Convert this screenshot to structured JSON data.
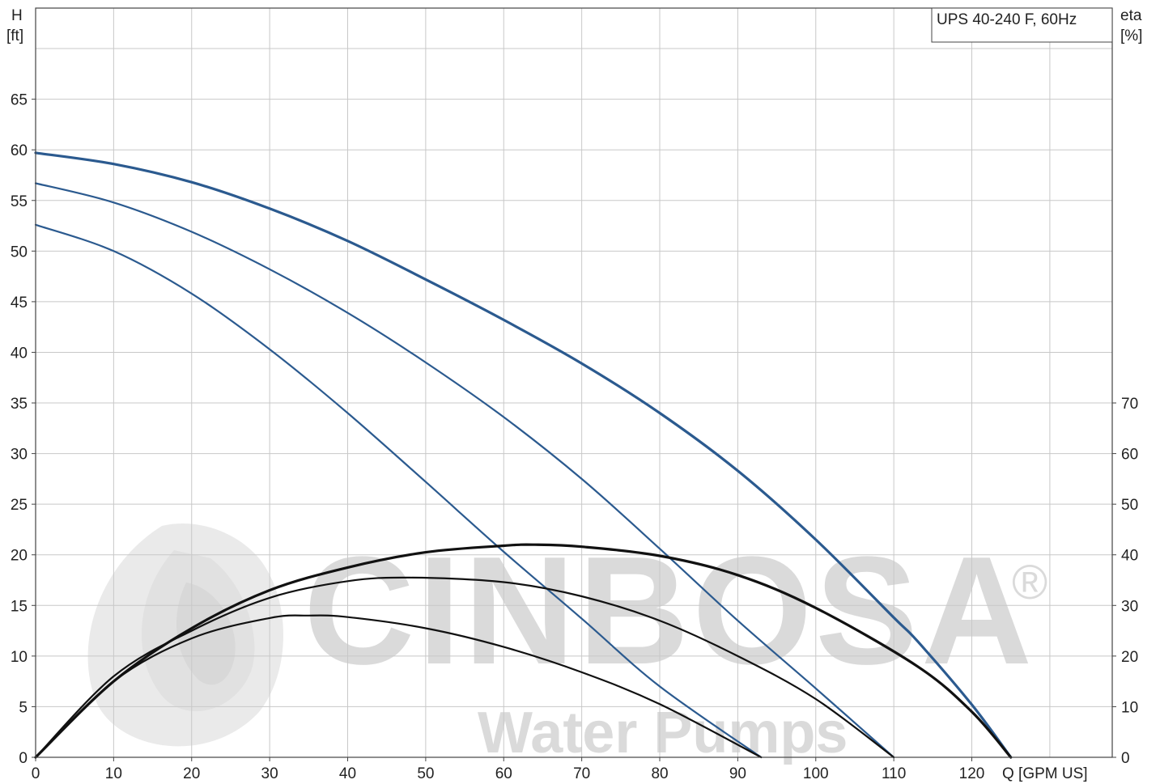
{
  "chart_data": {
    "type": "line",
    "title": "UPS 40-240 F, 60Hz",
    "xlabel": "Q [GPM US]",
    "ylabel_left": [
      "H",
      "[ft]"
    ],
    "ylabel_right": [
      "eta",
      "[%]"
    ],
    "xlim": [
      0,
      138
    ],
    "ylim_left": [
      0,
      74
    ],
    "ylim_right": [
      0,
      148
    ],
    "x_ticks": [
      0,
      10,
      20,
      30,
      40,
      50,
      60,
      70,
      80,
      90,
      100,
      110,
      120
    ],
    "y_left_ticks": [
      0,
      5,
      10,
      15,
      20,
      25,
      30,
      35,
      40,
      45,
      50,
      55,
      60,
      65
    ],
    "y_right_ticks": [
      0,
      10,
      20,
      30,
      40,
      50,
      60,
      70
    ],
    "grid": true,
    "watermark": [
      "CINBOSA",
      "Water Pumps",
      "®"
    ],
    "colors": {
      "head": "#2b5a8f",
      "efficiency": "#111111",
      "grid": "#c8c8c8"
    },
    "series": [
      {
        "kind": "head",
        "axis": "left",
        "x": [
          0,
          10,
          20,
          30,
          40,
          50,
          60,
          70,
          80,
          90,
          100,
          110,
          113,
          120,
          125
        ],
        "y": [
          59.7,
          58.6,
          56.8,
          54.2,
          51.0,
          47.2,
          43.2,
          38.9,
          34.0,
          28.3,
          21.5,
          13.8,
          11.5,
          5.2,
          0
        ]
      },
      {
        "kind": "head",
        "axis": "left",
        "x": [
          0,
          10,
          20,
          30,
          40,
          50,
          60,
          70,
          80,
          90,
          100,
          110
        ],
        "y": [
          56.7,
          54.8,
          51.9,
          48.2,
          43.9,
          39.0,
          33.6,
          27.5,
          20.6,
          13.5,
          6.8,
          0
        ]
      },
      {
        "kind": "head",
        "axis": "left",
        "x": [
          0,
          10,
          20,
          30,
          40,
          50,
          60,
          70,
          80,
          93
        ],
        "y": [
          52.6,
          50.0,
          45.8,
          40.3,
          34.0,
          27.2,
          20.3,
          13.7,
          7.0,
          0
        ]
      },
      {
        "kind": "efficiency",
        "axis": "right",
        "x": [
          0,
          10,
          20,
          30,
          40,
          50,
          60,
          64,
          70,
          80,
          90,
          100,
          113,
          120,
          125
        ],
        "y": [
          0,
          15.0,
          25.5,
          33.0,
          37.5,
          40.5,
          41.8,
          42.0,
          41.6,
          39.8,
          36.0,
          29.5,
          18.0,
          9.0,
          0
        ]
      },
      {
        "kind": "efficiency",
        "axis": "right",
        "x": [
          0,
          10,
          20,
          30,
          40,
          48,
          60,
          70,
          80,
          90,
          100,
          110
        ],
        "y": [
          0,
          16.0,
          25.0,
          31.5,
          34.8,
          35.5,
          34.6,
          31.8,
          27.0,
          20.0,
          11.5,
          0
        ]
      },
      {
        "kind": "efficiency",
        "axis": "right",
        "x": [
          0,
          10,
          20,
          30,
          35,
          40,
          50,
          60,
          70,
          80,
          93
        ],
        "y": [
          0,
          15.0,
          23.5,
          27.5,
          28.0,
          27.7,
          25.5,
          21.8,
          16.8,
          10.5,
          0
        ]
      }
    ]
  }
}
